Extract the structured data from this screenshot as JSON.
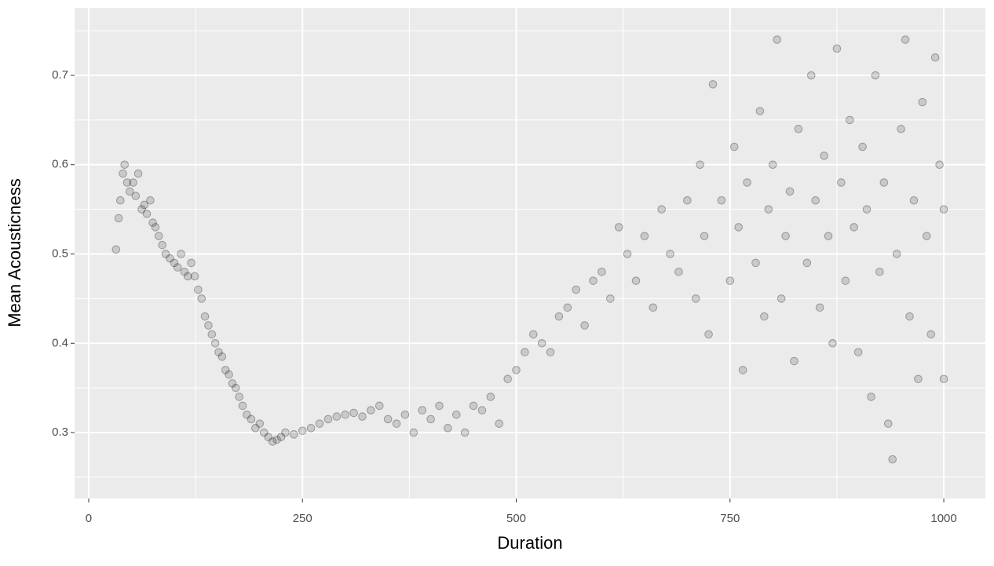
{
  "chart_data": {
    "type": "scatter",
    "xlabel": "Duration",
    "ylabel": "Mean Acousticness",
    "xlim": [
      -16.5,
      1048.6
    ],
    "ylim": [
      0.2262,
      0.7756
    ],
    "xticks": [
      0,
      250,
      500,
      750,
      1000
    ],
    "yticks": [
      0.3,
      0.4,
      0.5,
      0.6,
      0.7
    ],
    "x_minor_grid": [
      125,
      375,
      625,
      875
    ],
    "y_minor_grid": [
      0.25,
      0.35,
      0.45,
      0.55,
      0.65,
      0.75
    ],
    "grid": true,
    "color": "#000000",
    "panel_color": "#ebebeb",
    "x": [
      32,
      35,
      37,
      40,
      42,
      45,
      48,
      52,
      55,
      58,
      62,
      65,
      68,
      72,
      75,
      78,
      82,
      86,
      90,
      95,
      100,
      104,
      108,
      112,
      116,
      120,
      124,
      128,
      132,
      136,
      140,
      144,
      148,
      152,
      156,
      160,
      164,
      168,
      172,
      176,
      180,
      185,
      190,
      195,
      200,
      205,
      210,
      215,
      220,
      225,
      230,
      240,
      250,
      260,
      270,
      280,
      290,
      300,
      310,
      320,
      330,
      340,
      350,
      360,
      370,
      380,
      390,
      400,
      410,
      420,
      430,
      440,
      450,
      460,
      470,
      480,
      490,
      500,
      510,
      520,
      530,
      540,
      550,
      560,
      570,
      580,
      590,
      600,
      610,
      620,
      630,
      640,
      650,
      660,
      670,
      680,
      690,
      700,
      710,
      715,
      720,
      725,
      730,
      740,
      750,
      755,
      760,
      765,
      770,
      780,
      785,
      790,
      795,
      800,
      805,
      810,
      815,
      820,
      825,
      830,
      840,
      845,
      850,
      855,
      860,
      865,
      870,
      875,
      880,
      885,
      890,
      895,
      900,
      905,
      910,
      915,
      920,
      925,
      930,
      935,
      940,
      945,
      950,
      955,
      960,
      965,
      970,
      975,
      980,
      985,
      990,
      995,
      1000,
      1000
    ],
    "values": [
      0.505,
      0.54,
      0.56,
      0.59,
      0.6,
      0.58,
      0.57,
      0.58,
      0.565,
      0.59,
      0.55,
      0.555,
      0.545,
      0.56,
      0.535,
      0.53,
      0.52,
      0.51,
      0.5,
      0.495,
      0.49,
      0.485,
      0.5,
      0.48,
      0.475,
      0.49,
      0.475,
      0.46,
      0.45,
      0.43,
      0.42,
      0.41,
      0.4,
      0.39,
      0.385,
      0.37,
      0.365,
      0.355,
      0.35,
      0.34,
      0.33,
      0.32,
      0.315,
      0.305,
      0.31,
      0.3,
      0.295,
      0.29,
      0.292,
      0.295,
      0.3,
      0.298,
      0.302,
      0.305,
      0.31,
      0.315,
      0.318,
      0.32,
      0.322,
      0.318,
      0.325,
      0.33,
      0.315,
      0.31,
      0.32,
      0.3,
      0.325,
      0.315,
      0.33,
      0.305,
      0.32,
      0.3,
      0.33,
      0.325,
      0.34,
      0.31,
      0.36,
      0.37,
      0.39,
      0.41,
      0.4,
      0.39,
      0.43,
      0.44,
      0.46,
      0.42,
      0.47,
      0.48,
      0.45,
      0.53,
      0.5,
      0.47,
      0.52,
      0.44,
      0.55,
      0.5,
      0.48,
      0.56,
      0.45,
      0.6,
      0.52,
      0.41,
      0.69,
      0.56,
      0.47,
      0.62,
      0.53,
      0.37,
      0.58,
      0.49,
      0.66,
      0.43,
      0.55,
      0.6,
      0.74,
      0.45,
      0.52,
      0.57,
      0.38,
      0.64,
      0.49,
      0.7,
      0.56,
      0.44,
      0.61,
      0.52,
      0.4,
      0.73,
      0.58,
      0.47,
      0.65,
      0.53,
      0.39,
      0.62,
      0.55,
      0.34,
      0.7,
      0.48,
      0.58,
      0.31,
      0.27,
      0.5,
      0.64,
      0.74,
      0.43,
      0.56,
      0.36,
      0.67,
      0.52,
      0.41,
      0.72,
      0.6,
      0.36,
      0.55
    ]
  }
}
